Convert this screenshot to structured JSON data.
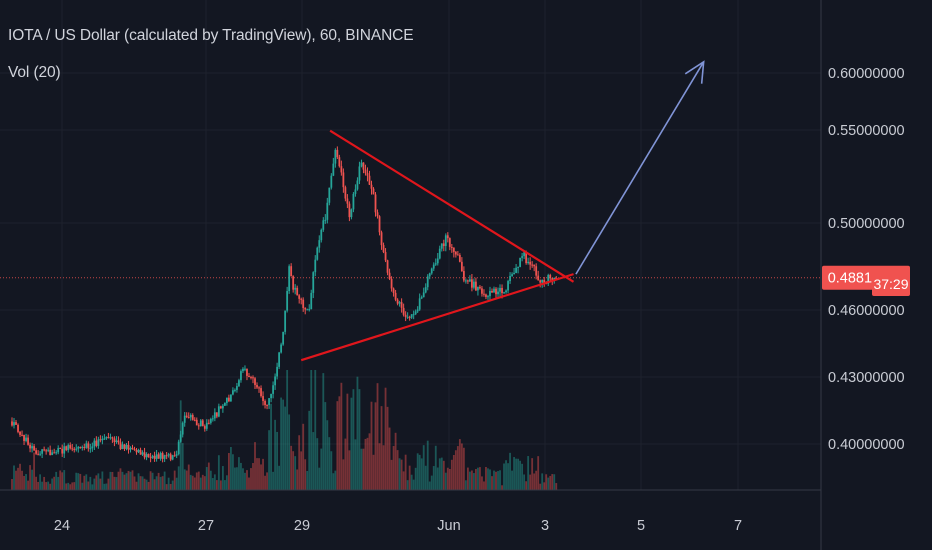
{
  "header": {
    "title": "IOTA / US Dollar (calculated by TradingView), 60, BINANCE",
    "indicator": "Vol (20)"
  },
  "colors": {
    "background": "#131722",
    "grid": "#1e222d",
    "up": "#26a69a",
    "down": "#ef5350",
    "trendline": "#e0161c",
    "arrow": "#8094d6",
    "price_badge": "#f0524f",
    "axis_text": "#c9ccd4"
  },
  "chart_data": {
    "type": "candlestick",
    "symbol": "IOTA / US Dollar",
    "interval": "60",
    "exchange": "BINANCE",
    "y_ticks": [
      "0.60000000",
      "0.55000000",
      "0.50000000",
      "0.46000000",
      "0.43000000",
      "0.40000000"
    ],
    "x_ticks": [
      "24",
      "27",
      "29",
      "Jun",
      "3",
      "5",
      "7"
    ],
    "last_price": "0.48812323",
    "countdown": "37:29",
    "ylim": [
      0.385,
      0.615
    ],
    "price_path": [
      {
        "t": 0,
        "p": 0.413
      },
      {
        "t": 0.5,
        "p": 0.396
      },
      {
        "t": 1.5,
        "p": 0.4
      },
      {
        "t": 2.0,
        "p": 0.404
      },
      {
        "t": 2.5,
        "p": 0.397
      },
      {
        "t": 3.0,
        "p": 0.395
      },
      {
        "t": 3.4,
        "p": 0.394
      },
      {
        "t": 3.6,
        "p": 0.417
      },
      {
        "t": 4.0,
        "p": 0.41
      },
      {
        "t": 4.5,
        "p": 0.425
      },
      {
        "t": 4.8,
        "p": 0.44
      },
      {
        "t": 5.0,
        "p": 0.435
      },
      {
        "t": 5.3,
        "p": 0.42
      },
      {
        "t": 5.6,
        "p": 0.455
      },
      {
        "t": 5.75,
        "p": 0.492
      },
      {
        "t": 5.9,
        "p": 0.478
      },
      {
        "t": 6.15,
        "p": 0.47
      },
      {
        "t": 6.3,
        "p": 0.5
      },
      {
        "t": 6.5,
        "p": 0.52
      },
      {
        "t": 6.7,
        "p": 0.555
      },
      {
        "t": 6.85,
        "p": 0.54
      },
      {
        "t": 7.0,
        "p": 0.52
      },
      {
        "t": 7.25,
        "p": 0.55
      },
      {
        "t": 7.5,
        "p": 0.53
      },
      {
        "t": 7.8,
        "p": 0.49
      },
      {
        "t": 8.0,
        "p": 0.475
      },
      {
        "t": 8.2,
        "p": 0.467
      },
      {
        "t": 8.4,
        "p": 0.47
      },
      {
        "t": 8.6,
        "p": 0.487
      },
      {
        "t": 8.8,
        "p": 0.497
      },
      {
        "t": 9.0,
        "p": 0.51
      },
      {
        "t": 9.2,
        "p": 0.502
      },
      {
        "t": 9.4,
        "p": 0.487
      },
      {
        "t": 9.6,
        "p": 0.484
      },
      {
        "t": 9.8,
        "p": 0.478
      },
      {
        "t": 10.0,
        "p": 0.482
      },
      {
        "t": 10.2,
        "p": 0.481
      },
      {
        "t": 10.4,
        "p": 0.492
      },
      {
        "t": 10.6,
        "p": 0.5
      },
      {
        "t": 10.8,
        "p": 0.494
      },
      {
        "t": 11.0,
        "p": 0.486
      },
      {
        "t": 11.2,
        "p": 0.489
      },
      {
        "t": 11.3,
        "p": 0.488
      }
    ],
    "triangle": {
      "upper": {
        "from": {
          "t": 6.6,
          "p": 0.565
        },
        "to": {
          "t": 11.65,
          "p": 0.486
        }
      },
      "lower": {
        "from": {
          "t": 6.0,
          "p": 0.445
        },
        "to": {
          "t": 11.65,
          "p": 0.49
        }
      }
    },
    "projection_arrow": {
      "from": {
        "t": 11.7,
        "p": 0.49
      },
      "to": {
        "t": 14.35,
        "p": 0.601
      }
    }
  }
}
